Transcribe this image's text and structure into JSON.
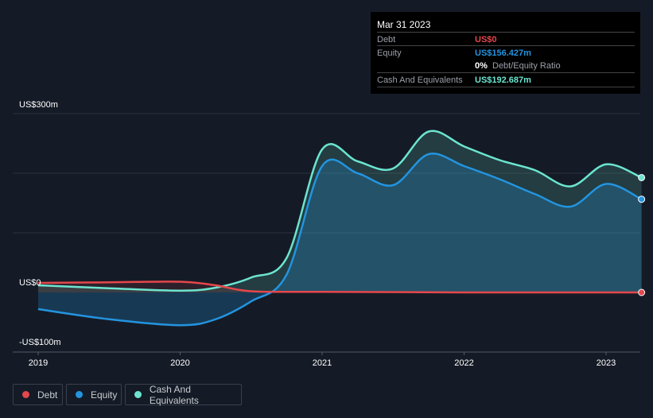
{
  "tooltip": {
    "date": "Mar 31 2023",
    "debt_label": "Debt",
    "debt_value": "US$0",
    "equity_label": "Equity",
    "equity_value": "US$156.427m",
    "ratio_value": "0%",
    "ratio_label": "Debt/Equity Ratio",
    "cash_label": "Cash And Equivalents",
    "cash_value": "US$192.687m"
  },
  "legend": [
    {
      "label": "Debt",
      "color": "#e5474c"
    },
    {
      "label": "Equity",
      "color": "#2394df"
    },
    {
      "label": "Cash And Equivalents",
      "color": "#6ce5d0"
    }
  ],
  "chart_data": {
    "type": "area",
    "ylim": [
      -100,
      300
    ],
    "xlim": [
      2018.98,
      2023.25
    ],
    "y_tick_labels": [
      "US$300m",
      "US$0",
      "-US$100m"
    ],
    "x_tick_labels": [
      "2019",
      "2020",
      "2021",
      "2022",
      "2023"
    ],
    "x_ticks": [
      2019,
      2020,
      2021,
      2022,
      2023
    ],
    "series": [
      {
        "name": "Debt",
        "color": "#e5474c",
        "x": [
          2019,
          2019.5,
          2020,
          2020.25,
          2020.5,
          2021,
          2022,
          2023.25
        ],
        "values": [
          16,
          17,
          18,
          12,
          2,
          1,
          0,
          0
        ]
      },
      {
        "name": "Equity",
        "color": "#2394df",
        "x": [
          2019,
          2019.5,
          2020,
          2020.25,
          2020.5,
          2020.75,
          2021,
          2021.25,
          2021.5,
          2021.75,
          2022,
          2022.25,
          2022.5,
          2022.75,
          2023,
          2023.25
        ],
        "values": [
          -28,
          -45,
          -55,
          -45,
          -15,
          30,
          212,
          200,
          180,
          232,
          212,
          190,
          165,
          144,
          182,
          156.4
        ]
      },
      {
        "name": "Cash And Equivalents",
        "color": "#6ce5d0",
        "x": [
          2019,
          2019.5,
          2020,
          2020.25,
          2020.5,
          2020.75,
          2021,
          2021.25,
          2021.5,
          2021.75,
          2022,
          2022.25,
          2022.5,
          2022.75,
          2023,
          2023.25
        ],
        "values": [
          12,
          7,
          3,
          8,
          25,
          58,
          240,
          220,
          208,
          270,
          245,
          222,
          205,
          178,
          215,
          192.7
        ]
      }
    ]
  }
}
